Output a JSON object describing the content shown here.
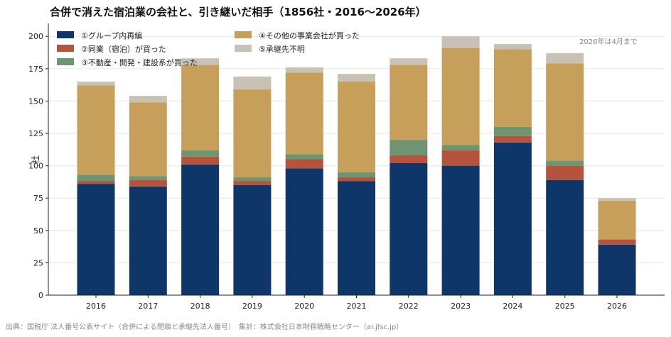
{
  "chart_data": {
    "type": "bar",
    "stacked": true,
    "title": "合併で消えた宿泊業の会社と、引き継いだ相手（1856社・2016〜2026年）",
    "ylabel": "社",
    "xlabel": "",
    "ylim": [
      0,
      210
    ],
    "yticks": [
      0,
      25,
      50,
      75,
      100,
      125,
      150,
      175,
      200
    ],
    "grid": true,
    "legend_position": "top-left",
    "categories": [
      "2016",
      "2017",
      "2018",
      "2019",
      "2020",
      "2021",
      "2022",
      "2023",
      "2024",
      "2025",
      "2026"
    ],
    "series": [
      {
        "name": "①グループ内再編",
        "color": "#0f3669",
        "values": [
          86,
          84,
          101,
          85,
          98,
          88,
          102,
          100,
          118,
          89,
          39
        ]
      },
      {
        "name": "②同業（宿泊）が買った",
        "color": "#b5533c",
        "values": [
          2,
          5,
          6,
          3,
          7,
          3,
          6,
          12,
          5,
          11,
          4
        ]
      },
      {
        "name": "③不動産・開発・建設系が買った",
        "color": "#6e9470",
        "values": [
          5,
          3,
          5,
          3,
          4,
          4,
          12,
          4,
          7,
          4,
          0
        ]
      },
      {
        "name": "④その他の事業会社が買った",
        "color": "#c6a05a",
        "values": [
          69,
          57,
          66,
          68,
          63,
          70,
          58,
          75,
          60,
          75,
          30
        ]
      },
      {
        "name": "⑤承継先不明",
        "color": "#c8c2b5",
        "values": [
          3,
          5,
          5,
          10,
          4,
          6,
          5,
          9,
          4,
          8,
          2
        ]
      }
    ],
    "annotation": "2026年は4月まで"
  },
  "footer": {
    "source": "出典：国税庁 法人番号公表サイト（合併による閉鎖と承継先法人番号）　集計：株式会社日本財務戦略センター（ai.jfsc.jp）"
  }
}
